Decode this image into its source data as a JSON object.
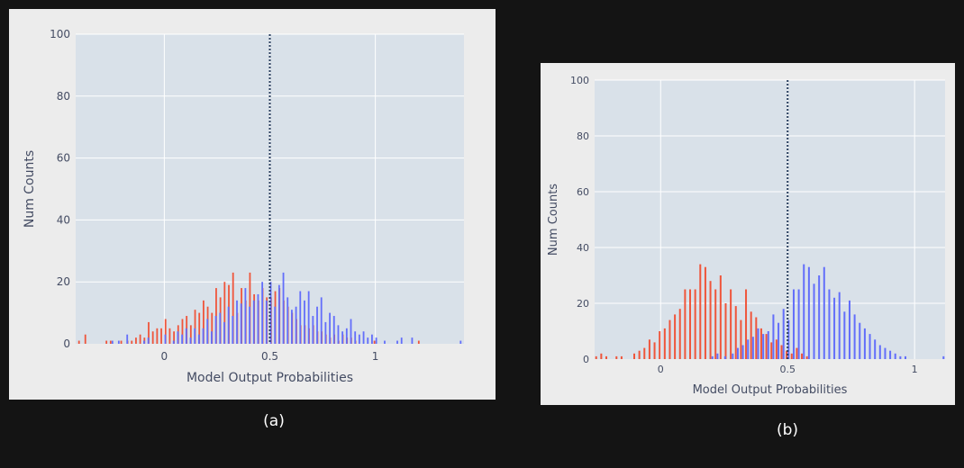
{
  "colors": {
    "series_a": "#ef553b",
    "series_b": "#636efa",
    "plot_bg": "#d9e1e9",
    "paper_bg": "#ececec",
    "threshold": "#2a3f5f"
  },
  "captions": {
    "a": "(a)",
    "b": "(b)"
  },
  "chart_data": [
    {
      "type": "bar",
      "title": "",
      "xlabel": "Model Output Probabilities",
      "ylabel": "Num Counts",
      "xlim": [
        -0.42,
        1.42
      ],
      "ylim": [
        0,
        100
      ],
      "xticks": [
        0,
        0.5,
        1
      ],
      "xtick_labels": [
        "0",
        "0.5",
        "1"
      ],
      "yticks": [
        0,
        20,
        40,
        60,
        80,
        100
      ],
      "ytick_labels": [
        "0",
        "20",
        "40",
        "60",
        "80",
        "100"
      ],
      "threshold": 0.5,
      "grid": true,
      "legend": "none",
      "series": [
        {
          "color": "#ef553b",
          "points": [
            [
              -0.4,
              1
            ],
            [
              -0.37,
              3
            ],
            [
              -0.27,
              1
            ],
            [
              -0.25,
              1
            ],
            [
              -0.2,
              1
            ],
            [
              -0.17,
              1
            ],
            [
              -0.15,
              1
            ],
            [
              -0.13,
              2
            ],
            [
              -0.11,
              3
            ],
            [
              -0.09,
              2
            ],
            [
              -0.07,
              7
            ],
            [
              -0.05,
              4
            ],
            [
              -0.03,
              5
            ],
            [
              -0.01,
              5
            ],
            [
              0.01,
              8
            ],
            [
              0.03,
              5
            ],
            [
              0.05,
              4
            ],
            [
              0.07,
              6
            ],
            [
              0.09,
              8
            ],
            [
              0.11,
              9
            ],
            [
              0.13,
              6
            ],
            [
              0.15,
              11
            ],
            [
              0.17,
              10
            ],
            [
              0.19,
              14
            ],
            [
              0.21,
              12
            ],
            [
              0.23,
              10
            ],
            [
              0.25,
              18
            ],
            [
              0.27,
              15
            ],
            [
              0.29,
              20
            ],
            [
              0.31,
              19
            ],
            [
              0.33,
              23
            ],
            [
              0.35,
              10
            ],
            [
              0.37,
              18
            ],
            [
              0.39,
              14
            ],
            [
              0.41,
              23
            ],
            [
              0.43,
              16
            ],
            [
              0.45,
              14
            ],
            [
              0.47,
              18
            ],
            [
              0.49,
              15
            ],
            [
              0.51,
              15
            ],
            [
              0.53,
              17
            ],
            [
              0.55,
              18
            ],
            [
              0.57,
              14
            ],
            [
              0.59,
              12
            ],
            [
              0.61,
              10
            ],
            [
              0.63,
              8
            ],
            [
              0.65,
              6
            ],
            [
              0.67,
              6
            ],
            [
              0.69,
              5
            ],
            [
              0.71,
              6
            ],
            [
              0.73,
              4
            ],
            [
              0.75,
              4
            ],
            [
              0.77,
              3
            ],
            [
              0.79,
              2
            ],
            [
              0.81,
              3
            ],
            [
              0.83,
              1
            ],
            [
              0.85,
              3
            ],
            [
              0.87,
              2
            ],
            [
              0.89,
              2
            ],
            [
              0.91,
              1
            ],
            [
              1.0,
              1
            ],
            [
              1.21,
              1
            ]
          ]
        },
        {
          "color": "#636efa",
          "points": [
            [
              -0.25,
              1
            ],
            [
              -0.22,
              1
            ],
            [
              -0.18,
              3
            ],
            [
              -0.1,
              1
            ],
            [
              -0.08,
              2
            ],
            [
              0.0,
              3
            ],
            [
              0.04,
              1
            ],
            [
              0.06,
              4
            ],
            [
              0.08,
              3
            ],
            [
              0.1,
              5
            ],
            [
              0.12,
              2
            ],
            [
              0.14,
              5
            ],
            [
              0.16,
              3
            ],
            [
              0.18,
              5
            ],
            [
              0.2,
              8
            ],
            [
              0.22,
              4
            ],
            [
              0.24,
              9
            ],
            [
              0.26,
              10
            ],
            [
              0.28,
              7
            ],
            [
              0.3,
              12
            ],
            [
              0.32,
              9
            ],
            [
              0.34,
              14
            ],
            [
              0.36,
              13
            ],
            [
              0.38,
              18
            ],
            [
              0.4,
              12
            ],
            [
              0.42,
              14
            ],
            [
              0.44,
              16
            ],
            [
              0.46,
              20
            ],
            [
              0.48,
              14
            ],
            [
              0.5,
              20
            ],
            [
              0.52,
              12
            ],
            [
              0.54,
              19
            ],
            [
              0.56,
              23
            ],
            [
              0.58,
              15
            ],
            [
              0.6,
              11
            ],
            [
              0.62,
              12
            ],
            [
              0.64,
              17
            ],
            [
              0.66,
              14
            ],
            [
              0.68,
              17
            ],
            [
              0.7,
              9
            ],
            [
              0.72,
              12
            ],
            [
              0.74,
              15
            ],
            [
              0.76,
              7
            ],
            [
              0.78,
              10
            ],
            [
              0.8,
              9
            ],
            [
              0.82,
              6
            ],
            [
              0.84,
              4
            ],
            [
              0.86,
              5
            ],
            [
              0.88,
              8
            ],
            [
              0.9,
              4
            ],
            [
              0.92,
              3
            ],
            [
              0.94,
              4
            ],
            [
              0.96,
              2
            ],
            [
              0.98,
              3
            ],
            [
              1.0,
              2
            ],
            [
              1.04,
              1
            ],
            [
              1.1,
              1
            ],
            [
              1.12,
              2
            ],
            [
              1.17,
              2
            ],
            [
              1.4,
              1
            ]
          ]
        }
      ]
    },
    {
      "type": "bar",
      "title": "",
      "xlabel": "Model Output Probabilities",
      "ylabel": "Num Counts",
      "xlim": [
        -0.26,
        1.12
      ],
      "ylim": [
        0,
        100
      ],
      "xticks": [
        0,
        0.5,
        1
      ],
      "xtick_labels": [
        "0",
        "0.5",
        "1"
      ],
      "yticks": [
        0,
        20,
        40,
        60,
        80,
        100
      ],
      "ytick_labels": [
        "0",
        "20",
        "40",
        "60",
        "80",
        "100"
      ],
      "threshold": 0.5,
      "grid": true,
      "legend": "none",
      "series": [
        {
          "color": "#ef553b",
          "points": [
            [
              -0.25,
              1
            ],
            [
              -0.23,
              2
            ],
            [
              -0.21,
              1
            ],
            [
              -0.17,
              1
            ],
            [
              -0.15,
              1
            ],
            [
              -0.1,
              2
            ],
            [
              -0.08,
              3
            ],
            [
              -0.06,
              4
            ],
            [
              -0.04,
              7
            ],
            [
              -0.02,
              6
            ],
            [
              0.0,
              10
            ],
            [
              0.02,
              11
            ],
            [
              0.04,
              14
            ],
            [
              0.06,
              16
            ],
            [
              0.08,
              18
            ],
            [
              0.1,
              25
            ],
            [
              0.12,
              25
            ],
            [
              0.14,
              25
            ],
            [
              0.16,
              34
            ],
            [
              0.18,
              33
            ],
            [
              0.2,
              28
            ],
            [
              0.22,
              25
            ],
            [
              0.24,
              30
            ],
            [
              0.26,
              20
            ],
            [
              0.28,
              25
            ],
            [
              0.3,
              19
            ],
            [
              0.32,
              14
            ],
            [
              0.34,
              25
            ],
            [
              0.36,
              17
            ],
            [
              0.38,
              15
            ],
            [
              0.4,
              11
            ],
            [
              0.42,
              9
            ],
            [
              0.44,
              6
            ],
            [
              0.46,
              7
            ],
            [
              0.48,
              5
            ],
            [
              0.5,
              3
            ],
            [
              0.52,
              2
            ],
            [
              0.54,
              4
            ],
            [
              0.56,
              2
            ],
            [
              0.58,
              1
            ]
          ]
        },
        {
          "color": "#636efa",
          "points": [
            [
              0.2,
              1
            ],
            [
              0.22,
              2
            ],
            [
              0.25,
              1
            ],
            [
              0.28,
              2
            ],
            [
              0.3,
              4
            ],
            [
              0.32,
              5
            ],
            [
              0.34,
              7
            ],
            [
              0.36,
              8
            ],
            [
              0.38,
              11
            ],
            [
              0.4,
              9
            ],
            [
              0.42,
              10
            ],
            [
              0.44,
              16
            ],
            [
              0.46,
              13
            ],
            [
              0.48,
              18
            ],
            [
              0.5,
              14
            ],
            [
              0.52,
              25
            ],
            [
              0.54,
              25
            ],
            [
              0.56,
              34
            ],
            [
              0.58,
              33
            ],
            [
              0.6,
              27
            ],
            [
              0.62,
              30
            ],
            [
              0.64,
              33
            ],
            [
              0.66,
              25
            ],
            [
              0.68,
              22
            ],
            [
              0.7,
              24
            ],
            [
              0.72,
              17
            ],
            [
              0.74,
              21
            ],
            [
              0.76,
              16
            ],
            [
              0.78,
              13
            ],
            [
              0.8,
              11
            ],
            [
              0.82,
              9
            ],
            [
              0.84,
              7
            ],
            [
              0.86,
              5
            ],
            [
              0.88,
              4
            ],
            [
              0.9,
              3
            ],
            [
              0.92,
              2
            ],
            [
              0.94,
              1
            ],
            [
              0.96,
              1
            ],
            [
              1.11,
              1
            ]
          ]
        }
      ]
    }
  ]
}
